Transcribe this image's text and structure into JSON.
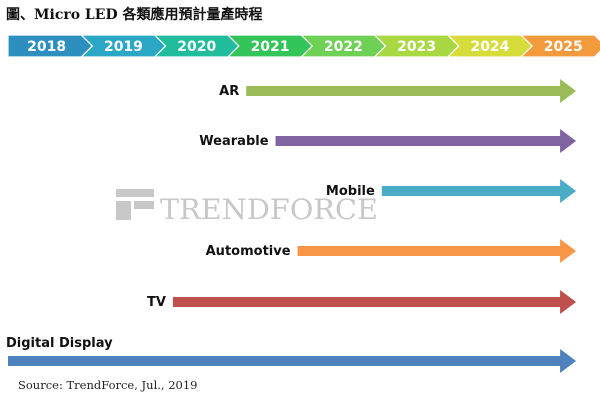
{
  "title": "圖、Micro LED 各類應用預計量產時程",
  "source": "Source: TrendForce, Jul., 2019",
  "watermark": {
    "brand": "TRENDFORCE",
    "color": "#c8c8c8"
  },
  "chart_data": {
    "type": "timeline-bar",
    "title": "",
    "xlabel": "",
    "ylabel": "",
    "categories": [
      "2018",
      "2019",
      "2020",
      "2021",
      "2022",
      "2023",
      "2024",
      "2025"
    ],
    "year_colors": [
      "#2d8fbf",
      "#2aa7c5",
      "#21bc9c",
      "#33c45a",
      "#6fd056",
      "#a8d943",
      "#d6dc3a",
      "#f29a3c"
    ],
    "series": [
      {
        "name": "AR",
        "start": 2021.25,
        "end": 2025.75,
        "color": "#9bbb59"
      },
      {
        "name": "Wearable",
        "start": 2021.65,
        "end": 2025.75,
        "color": "#8064a2"
      },
      {
        "name": "Mobile",
        "start": 2023.1,
        "end": 2025.75,
        "color": "#4bacc6"
      },
      {
        "name": "Automotive",
        "start": 2021.95,
        "end": 2025.75,
        "color": "#f79646"
      },
      {
        "name": "TV",
        "start": 2020.25,
        "end": 2025.75,
        "color": "#c0504d"
      },
      {
        "name": "Digital Display",
        "start": 2018.0,
        "end": 2025.75,
        "color": "#4f81bd"
      }
    ]
  }
}
